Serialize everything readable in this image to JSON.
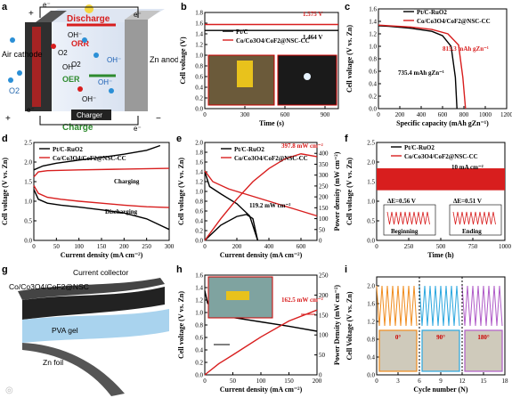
{
  "labels": [
    "a",
    "b",
    "c",
    "d",
    "e",
    "f",
    "g",
    "h",
    "i"
  ],
  "panel_a": {
    "electrons": [
      "e⁻",
      "e⁻",
      "e⁻",
      "e⁻"
    ],
    "discharge": "Discharge",
    "charge": "Charge",
    "charger": "Charger",
    "air_cathode": "Air cathode",
    "zn_anode": "Zn anode",
    "orr": "ORR",
    "oer": "OER",
    "o2": "O2",
    "species": [
      "OH⁻",
      "O2",
      "OH⁻",
      "OH⁻",
      "O2",
      "OH⁻",
      "OH⁻"
    ],
    "signs": [
      "+",
      "+",
      "−"
    ],
    "colors": {
      "discharge": "#d81e1e",
      "charge": "#2e8b2e",
      "cathode": "#2f2f2f",
      "anode": "#9a9a9a"
    }
  },
  "panel_g": {
    "current_collector": "Current collector",
    "catalyst": "Co/Co3O4/CoF2@NSC",
    "pva": "PVA gel",
    "zn": "Zn foil"
  },
  "chart_data": [
    {
      "id": "b",
      "type": "line",
      "xlabel": "Time (s)",
      "ylabel": "Cell voltage (V)",
      "xlim": [
        0,
        1000
      ],
      "ylim": [
        0.0,
        1.8
      ],
      "xticks": [
        0,
        300,
        600,
        900
      ],
      "yticks": [
        0.0,
        0.2,
        0.4,
        0.6,
        0.8,
        1.0,
        1.2,
        1.4,
        1.6,
        1.8
      ],
      "series": [
        {
          "name": "Pt/C",
          "color": "#000000",
          "x": [
            0,
            1000
          ],
          "y": [
            1.464,
            1.464
          ]
        },
        {
          "name": "Co/Co3O4/CoF2@NSC-CC",
          "color": "#d81e1e",
          "x": [
            0,
            1000
          ],
          "y": [
            1.575,
            1.575
          ]
        }
      ],
      "annotations": [
        "1.575 V",
        "1.464 V"
      ]
    },
    {
      "id": "c",
      "type": "line",
      "xlabel": "Specific capacity (mAh gZn⁻¹)",
      "ylabel": "Cell voltage (V vs. Zn)",
      "xlim": [
        0,
        1200
      ],
      "ylim": [
        0.0,
        1.6
      ],
      "xticks": [
        0,
        200,
        400,
        600,
        800,
        1000,
        1200
      ],
      "yticks": [
        0.0,
        0.2,
        0.4,
        0.6,
        0.8,
        1.0,
        1.2,
        1.4,
        1.6
      ],
      "series": [
        {
          "name": "Pt/C-RuO2",
          "color": "#000000",
          "x": [
            0,
            100,
            300,
            500,
            600,
            680,
            720,
            735
          ],
          "y": [
            1.33,
            1.32,
            1.29,
            1.24,
            1.17,
            1.0,
            0.5,
            0.0
          ]
        },
        {
          "name": "Co/Co3O4/CoF2@NSC-CC",
          "color": "#d81e1e",
          "x": [
            0,
            100,
            300,
            500,
            650,
            750,
            790,
            815
          ],
          "y": [
            1.34,
            1.33,
            1.31,
            1.27,
            1.2,
            1.02,
            0.5,
            0.0
          ]
        }
      ],
      "annotations": [
        "815.3 mAh gZn⁻¹",
        "735.4 mAh gZn⁻¹"
      ]
    },
    {
      "id": "d",
      "type": "line",
      "xlabel": "Current density (mA cm⁻²)",
      "ylabel": "Cell voltage (V vs. Zn)",
      "xlim": [
        0,
        300
      ],
      "ylim": [
        0.0,
        2.5
      ],
      "xticks": [
        0,
        50,
        100,
        150,
        200,
        250,
        300
      ],
      "yticks": [
        0.0,
        0.5,
        1.0,
        1.5,
        2.0,
        2.5
      ],
      "series": [
        {
          "name": "Pt/C-RuO2 charge",
          "color": "#000000",
          "x": [
            0,
            20,
            50,
            100,
            150,
            200,
            250,
            280
          ],
          "y": [
            1.8,
            1.9,
            1.97,
            2.05,
            2.12,
            2.2,
            2.3,
            2.42
          ]
        },
        {
          "name": "Pt/C-RuO2 discharge",
          "color": "#000000",
          "x": [
            0,
            10,
            30,
            60,
            100,
            150,
            200,
            250,
            300
          ],
          "y": [
            1.3,
            1.05,
            0.95,
            0.9,
            0.85,
            0.78,
            0.7,
            0.55,
            0.28
          ]
        },
        {
          "name": "NSC charge",
          "color": "#d81e1e",
          "x": [
            0,
            10,
            30,
            100,
            200,
            300
          ],
          "y": [
            1.62,
            1.75,
            1.78,
            1.8,
            1.82,
            1.84
          ]
        },
        {
          "name": "NSC discharge",
          "color": "#d81e1e",
          "x": [
            0,
            10,
            30,
            60,
            100,
            150,
            200,
            250,
            300
          ],
          "y": [
            1.4,
            1.2,
            1.1,
            1.05,
            1.0,
            0.95,
            0.9,
            0.86,
            0.84
          ]
        }
      ],
      "legend": [
        "Pt/C-RuO2",
        "Co/Co3O4/CoF2@NSC-CC"
      ],
      "annotations": [
        "Charging",
        "Discharging"
      ]
    },
    {
      "id": "e",
      "type": "line",
      "xlabel": "Current density (mA cm⁻²)",
      "ylabel": "Cell voltage (V vs. Zn)",
      "ylabel2": "Power density (mW cm⁻²)",
      "xlim": [
        0,
        700
      ],
      "ylim": [
        0.0,
        2.0
      ],
      "y2lim": [
        0,
        450
      ],
      "xticks": [
        0,
        200,
        400,
        600
      ],
      "yticks": [
        0.0,
        0.2,
        0.4,
        0.6,
        0.8,
        1.0,
        1.2,
        1.4,
        1.6,
        1.8,
        2.0
      ],
      "y2ticks": [
        0,
        50,
        100,
        150,
        200,
        250,
        300,
        350,
        400
      ],
      "series": [
        {
          "name": "Pt/C-RuO2",
          "color": "#000000",
          "x": [
            0,
            30,
            100,
            200,
            280,
            330
          ],
          "y": [
            1.4,
            1.1,
            0.95,
            0.75,
            0.5,
            0.0
          ]
        },
        {
          "name": "Co/Co3O4/CoF2@NSC-CC",
          "color": "#d81e1e",
          "x": [
            0,
            50,
            150,
            300,
            450,
            550,
            650,
            700
          ],
          "y": [
            1.42,
            1.2,
            1.05,
            0.9,
            0.75,
            0.65,
            0.55,
            0.5
          ]
        },
        {
          "name": "Pt/C-RuO2 power",
          "color": "#000000",
          "axis": "y2",
          "x": [
            0,
            100,
            200,
            260,
            300,
            330
          ],
          "y": [
            0,
            70,
            110,
            119.2,
            100,
            0
          ]
        },
        {
          "name": "NSC power",
          "color": "#d81e1e",
          "axis": "y2",
          "x": [
            0,
            100,
            200,
            300,
            400,
            500,
            600,
            700
          ],
          "y": [
            0,
            100,
            190,
            270,
            330,
            375,
            397.8,
            385
          ]
        }
      ],
      "annotations": [
        "397.8 mW cm⁻²",
        "119.2 mW cm⁻²"
      ]
    },
    {
      "id": "f",
      "type": "line",
      "xlabel": "Time (h)",
      "ylabel": "Cell voltage (V vs. Zn)",
      "xlim": [
        0,
        1000
      ],
      "ylim": [
        0.0,
        2.5
      ],
      "xticks": [
        0,
        250,
        500,
        750,
        1000
      ],
      "yticks": [
        0.0,
        0.5,
        1.0,
        1.5,
        2.0,
        2.5
      ],
      "series": [
        {
          "name": "Pt/C-RuO2",
          "color": "#000000"
        },
        {
          "name": "Co/Co3O4/CoF2@NSC-CC",
          "color": "#d81e1e",
          "band": [
            1.28,
            1.84
          ]
        }
      ],
      "annotations": [
        "10 mA cm⁻²",
        "ΔE=0.56 V",
        "ΔE=0.51 V",
        "Beginning",
        "Ending"
      ]
    },
    {
      "id": "h",
      "type": "line",
      "xlabel": "Current density (mA cm⁻²)",
      "ylabel": "Cell voltage (V vs. Zn)",
      "ylabel2": "Power Density (mW cm⁻²)",
      "xlim": [
        0,
        200
      ],
      "ylim": [
        0.0,
        1.6
      ],
      "y2lim": [
        0,
        250
      ],
      "xticks": [
        0,
        50,
        100,
        150,
        200
      ],
      "yticks": [
        0.0,
        0.2,
        0.4,
        0.6,
        0.8,
        1.0,
        1.2,
        1.4,
        1.6
      ],
      "y2ticks": [
        0,
        50,
        100,
        150,
        200,
        250
      ],
      "series": [
        {
          "name": "voltage",
          "color": "#000000",
          "x": [
            0,
            5,
            20,
            50,
            100,
            150,
            200
          ],
          "y": [
            1.35,
            1.15,
            1.0,
            0.92,
            0.85,
            0.78,
            0.7
          ]
        },
        {
          "name": "power",
          "color": "#d81e1e",
          "axis": "y2",
          "x": [
            0,
            25,
            50,
            100,
            150,
            200
          ],
          "y": [
            0,
            28,
            50,
            95,
            135,
            162.5
          ]
        }
      ],
      "annotations": [
        "162.5 mW cm⁻²"
      ]
    },
    {
      "id": "i",
      "type": "line",
      "xlabel": "Cycle number (N)",
      "ylabel": "Cell Voltage (V vs. Zn)",
      "xlim": [
        0,
        18
      ],
      "ylim": [
        0.0,
        2.2
      ],
      "xticks": [
        0,
        3,
        6,
        9,
        12,
        15,
        18
      ],
      "yticks": [
        0.0,
        0.4,
        0.8,
        1.2,
        1.6,
        2.0
      ],
      "segments": [
        {
          "label": "0°",
          "color": "#f08c1e",
          "x": [
            0,
            6
          ]
        },
        {
          "label": "90°",
          "color": "#2aa7df",
          "x": [
            6,
            12
          ]
        },
        {
          "label": "180°",
          "color": "#b05cc8",
          "x": [
            12,
            18
          ]
        }
      ]
    }
  ]
}
